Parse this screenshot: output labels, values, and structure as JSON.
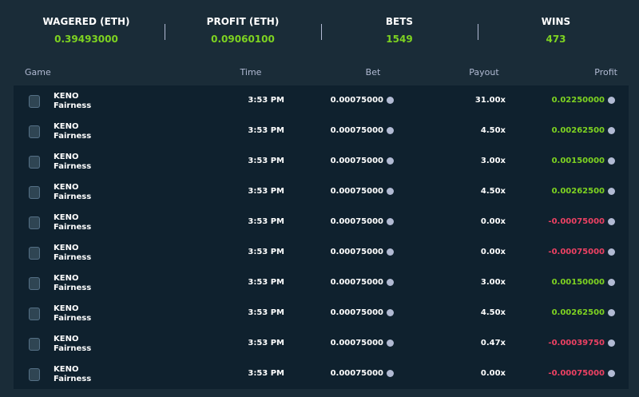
{
  "stats": [
    {
      "label": "WAGERED (ETH)",
      "value": "0.39493000"
    },
    {
      "label": "PROFIT (ETH)",
      "value": "0.09060100"
    },
    {
      "label": "BETS",
      "value": "1549"
    },
    {
      "label": "WINS",
      "value": "473"
    }
  ],
  "table": {
    "headers": [
      "Game",
      "Time",
      "Bet",
      "Payout",
      "Profit"
    ],
    "rows": [
      {
        "game": "KENO",
        "sub": "Fairness",
        "time": "3:53 PM",
        "bet": "0.00075000",
        "payout": "31.00x",
        "profit": "0.02250000"
      },
      {
        "game": "KENO",
        "sub": "Fairness",
        "time": "3:53 PM",
        "bet": "0.00075000",
        "payout": "4.50x",
        "profit": "0.00262500"
      },
      {
        "game": "KENO",
        "sub": "Fairness",
        "time": "3:53 PM",
        "bet": "0.00075000",
        "payout": "3.00x",
        "profit": "0.00150000"
      },
      {
        "game": "KENO",
        "sub": "Fairness",
        "time": "3:53 PM",
        "bet": "0.00075000",
        "payout": "4.50x",
        "profit": "0.00262500"
      },
      {
        "game": "KENO",
        "sub": "Fairness",
        "time": "3:53 PM",
        "bet": "0.00075000",
        "payout": "0.00x",
        "profit": "-0.00075000"
      },
      {
        "game": "KENO",
        "sub": "Fairness",
        "time": "3:53 PM",
        "bet": "0.00075000",
        "payout": "0.00x",
        "profit": "-0.00075000"
      },
      {
        "game": "KENO",
        "sub": "Fairness",
        "time": "3:53 PM",
        "bet": "0.00075000",
        "payout": "3.00x",
        "profit": "0.00150000"
      },
      {
        "game": "KENO",
        "sub": "Fairness",
        "time": "3:53 PM",
        "bet": "0.00075000",
        "payout": "4.50x",
        "profit": "0.00262500"
      },
      {
        "game": "KENO",
        "sub": "Fairness",
        "time": "3:53 PM",
        "bet": "0.00075000",
        "payout": "0.47x",
        "profit": "-0.00039750"
      },
      {
        "game": "KENO",
        "sub": "Fairness",
        "time": "3:53 PM",
        "bet": "0.00075000",
        "payout": "0.00x",
        "profit": "-0.00075000"
      }
    ]
  }
}
